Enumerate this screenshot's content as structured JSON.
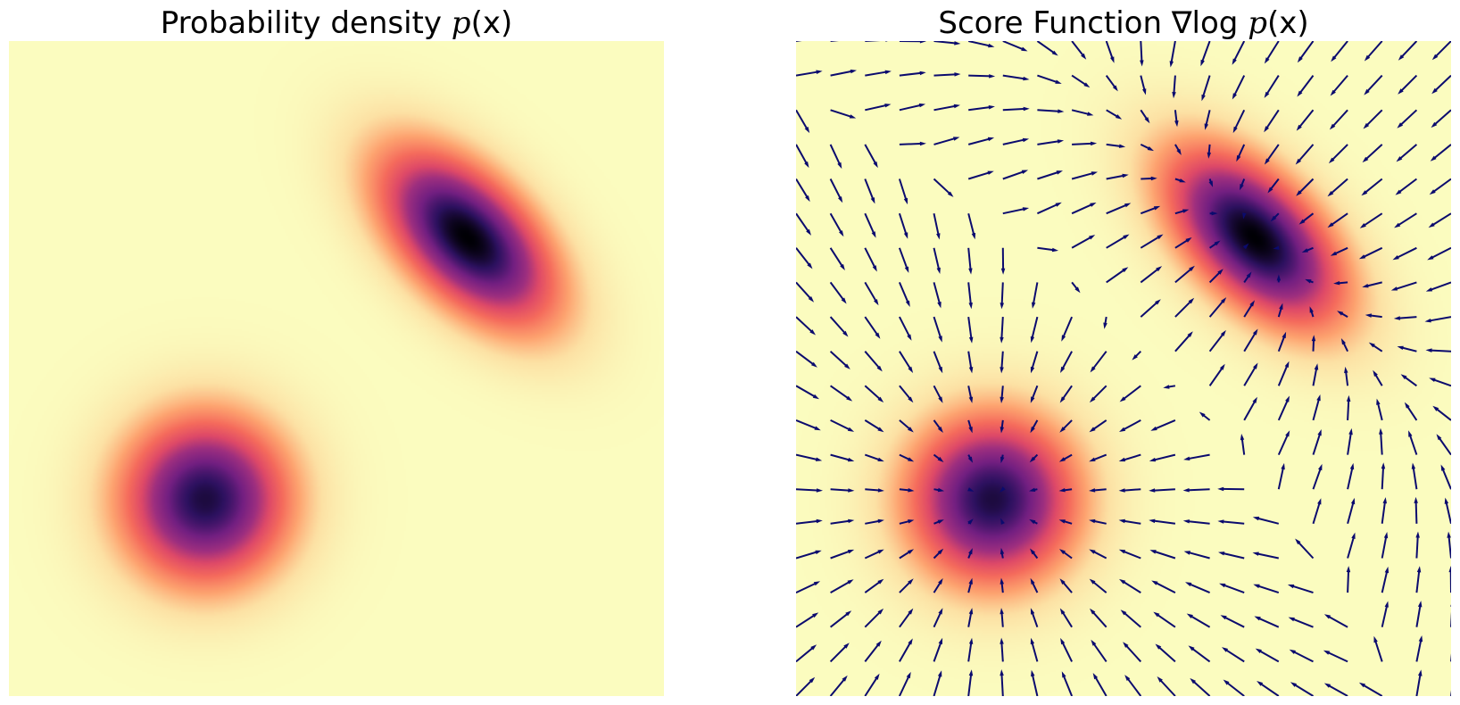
{
  "panels": {
    "left": {
      "title_main": "Probability density ",
      "title_math": "p",
      "title_tail": "(x)"
    },
    "right": {
      "title_main": "Score Function ∇log ",
      "title_math": "p",
      "title_tail": "(x)"
    }
  },
  "chart_data": [
    {
      "type": "heatmap",
      "title": "Probability density p(x)",
      "colormap": "magma_r",
      "axes_visible": false,
      "xlim": [
        -4,
        4
      ],
      "ylim": [
        -4,
        4
      ],
      "grid": false,
      "mixture": [
        {
          "weight": 0.5,
          "mean": [
            -1.6,
            -1.6
          ],
          "cov": [
            [
              0.5,
              0.0
            ],
            [
              0.0,
              0.5
            ]
          ]
        },
        {
          "weight": 0.5,
          "mean": [
            1.6,
            1.6
          ],
          "cov": [
            [
              0.55,
              -0.3
            ],
            [
              -0.3,
              0.55
            ]
          ]
        }
      ]
    },
    {
      "type": "heatmap",
      "title": "Score Function ∇log p(x)",
      "colormap": "magma_r",
      "overlay": "quiver",
      "arrow_color": "#0b0b6e",
      "quiver_grid": {
        "count": 20,
        "range": [
          -4,
          4
        ]
      },
      "axes_visible": false,
      "xlim": [
        -4,
        4
      ],
      "ylim": [
        -4,
        4
      ],
      "grid": false
    }
  ]
}
